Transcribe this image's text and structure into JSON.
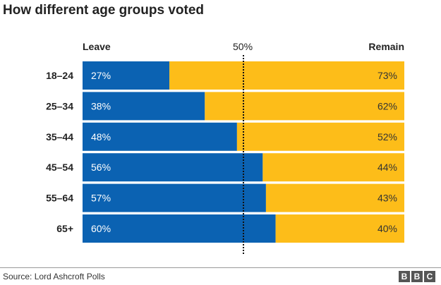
{
  "chart_data": {
    "type": "bar",
    "stacked": true,
    "orientation": "horizontal",
    "title": "How different age groups voted",
    "categories": [
      "18–24",
      "25–34",
      "35–44",
      "45–54",
      "55–64",
      "65+"
    ],
    "series": [
      {
        "name": "Leave",
        "values": [
          27,
          38,
          48,
          56,
          57,
          60
        ],
        "color": "#0b62b2"
      },
      {
        "name": "Remain",
        "values": [
          73,
          62,
          52,
          44,
          43,
          40
        ],
        "color": "#fdbd19"
      }
    ],
    "value_labels": {
      "Leave": [
        "27%",
        "38%",
        "48%",
        "56%",
        "57%",
        "60%"
      ],
      "Remain": [
        "73%",
        "62%",
        "52%",
        "44%",
        "43%",
        "40%"
      ]
    },
    "reference_line": {
      "value": 50,
      "label": "50%",
      "style": "dotted"
    },
    "xlim": [
      0,
      100
    ],
    "grid": false,
    "source": "Source: Lord Ashcroft Polls",
    "logo": "BBC"
  }
}
